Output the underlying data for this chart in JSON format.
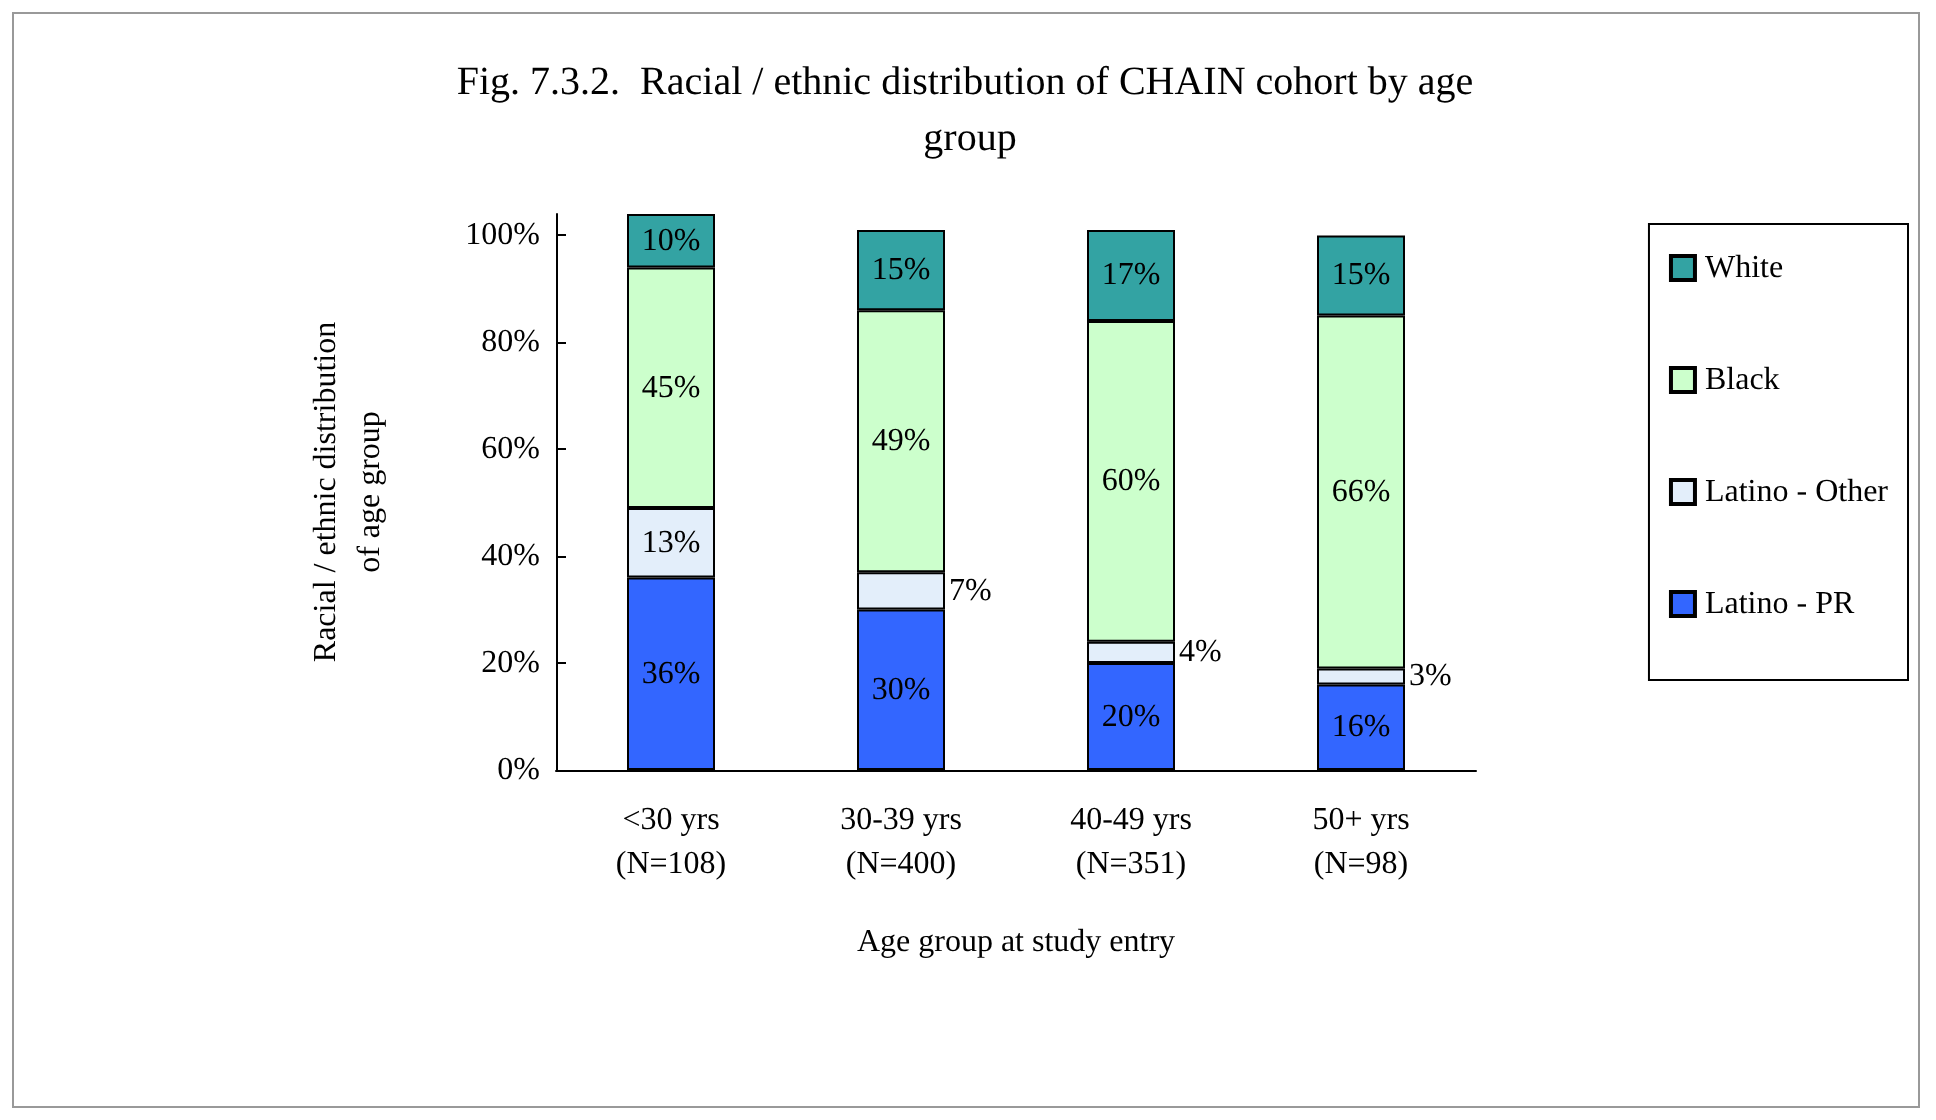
{
  "chart_data": {
    "type": "bar",
    "stacked": true,
    "title": "Fig. 7.3.2.  Racial / ethnic distribution of CHAIN cohort by age group",
    "xlabel": "Age group at study entry",
    "ylabel": "Racial / ethnic distribution\nof age group",
    "categories": [
      "<30 yrs\n(N=108)",
      "30-39 yrs\n(N=400)",
      "40-49 yrs\n(N=351)",
      "50+ yrs\n(N=98)"
    ],
    "series": [
      {
        "name": "Latino - PR",
        "color": "#3366ff",
        "values": [
          36,
          30,
          20,
          16
        ],
        "value_labels": [
          "36%",
          "30%",
          "20%",
          "16%"
        ]
      },
      {
        "name": "Latino - Other",
        "color": "#e3eefa",
        "values": [
          13,
          7,
          4,
          3
        ],
        "value_labels": [
          "13%",
          "7%",
          "4%",
          "3%"
        ]
      },
      {
        "name": "Black",
        "color": "#ccffcc",
        "values": [
          45,
          49,
          60,
          66
        ],
        "value_labels": [
          "45%",
          "49%",
          "60%",
          "66%"
        ]
      },
      {
        "name": "White",
        "color": "#33a3a3",
        "values": [
          10,
          15,
          17,
          15
        ],
        "value_labels": [
          "10%",
          "15%",
          "17%",
          "15%"
        ]
      }
    ],
    "ylim": [
      0,
      104
    ],
    "yticks": [
      {
        "value": 0,
        "label": "0%"
      },
      {
        "value": 20,
        "label": "20%"
      },
      {
        "value": 40,
        "label": "40%"
      },
      {
        "value": 60,
        "label": "60%"
      },
      {
        "value": 80,
        "label": "80%"
      },
      {
        "value": 100,
        "label": "100%"
      }
    ],
    "grid": false,
    "legend": "right"
  }
}
